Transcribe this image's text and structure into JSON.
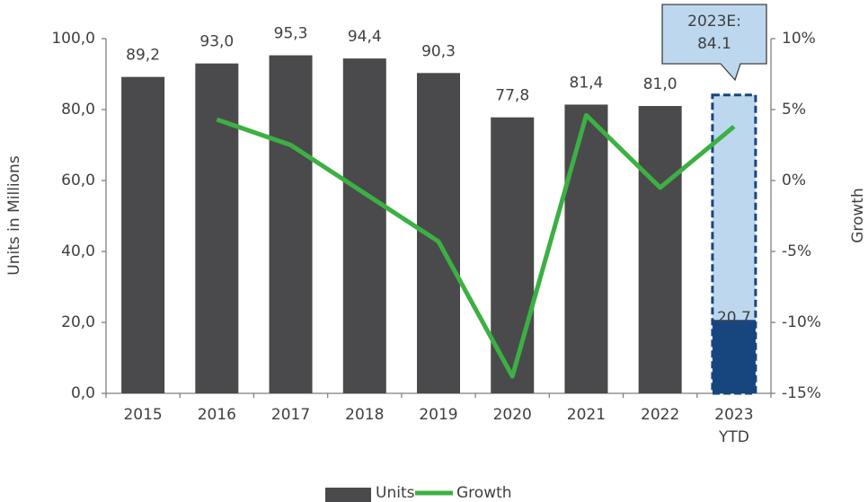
{
  "chart_data": {
    "type": "bar",
    "categories": [
      "2015",
      "2016",
      "2017",
      "2018",
      "2019",
      "2020",
      "2021",
      "2022",
      "2023 YTD"
    ],
    "series": [
      {
        "name": "Units",
        "type": "bar",
        "color": "#4a4a4c",
        "colors": [
          "#4a4a4c",
          "#4a4a4c",
          "#4a4a4c",
          "#4a4a4c",
          "#4a4a4c",
          "#4a4a4c",
          "#4a4a4c",
          "#4a4a4c",
          "#17467f"
        ],
        "values": [
          89.2,
          93.0,
          95.3,
          94.4,
          90.3,
          77.8,
          81.4,
          81.0,
          20.7
        ],
        "value_labels": [
          "89,2",
          "93,0",
          "95,3",
          "94,4",
          "90,3",
          "77,8",
          "81,4",
          "81,0",
          "20,7"
        ]
      },
      {
        "name": "Growth",
        "type": "line",
        "axis": "y2",
        "color": "#3cb043",
        "values": [
          null,
          4.3,
          2.5,
          -0.9,
          -4.3,
          -13.8,
          4.6,
          -0.5,
          3.8
        ]
      }
    ],
    "estimate": {
      "label": "2023E:",
      "value": 84.1,
      "color": "#bdd7ee",
      "border": "#17467f"
    },
    "ylabel": "Units in Millions",
    "y2label": "Growth",
    "ylim": [
      0,
      100
    ],
    "yticks": [
      {
        "value": 0,
        "label": "0,0"
      },
      {
        "value": 20,
        "label": "20,0"
      },
      {
        "value": 40,
        "label": "40,0"
      },
      {
        "value": 60,
        "label": "60,0"
      },
      {
        "value": 80,
        "label": "80,0"
      },
      {
        "value": 100,
        "label": "100,0"
      }
    ],
    "y2lim": [
      -15,
      10
    ],
    "y2ticks": [
      {
        "value": -15,
        "label": "-15%"
      },
      {
        "value": -10,
        "label": "-10%"
      },
      {
        "value": -5,
        "label": "-5%"
      },
      {
        "value": 0,
        "label": "0%"
      },
      {
        "value": 5,
        "label": "5%"
      },
      {
        "value": 10,
        "label": "10%"
      }
    ],
    "legend": "bottom",
    "grid": false
  }
}
